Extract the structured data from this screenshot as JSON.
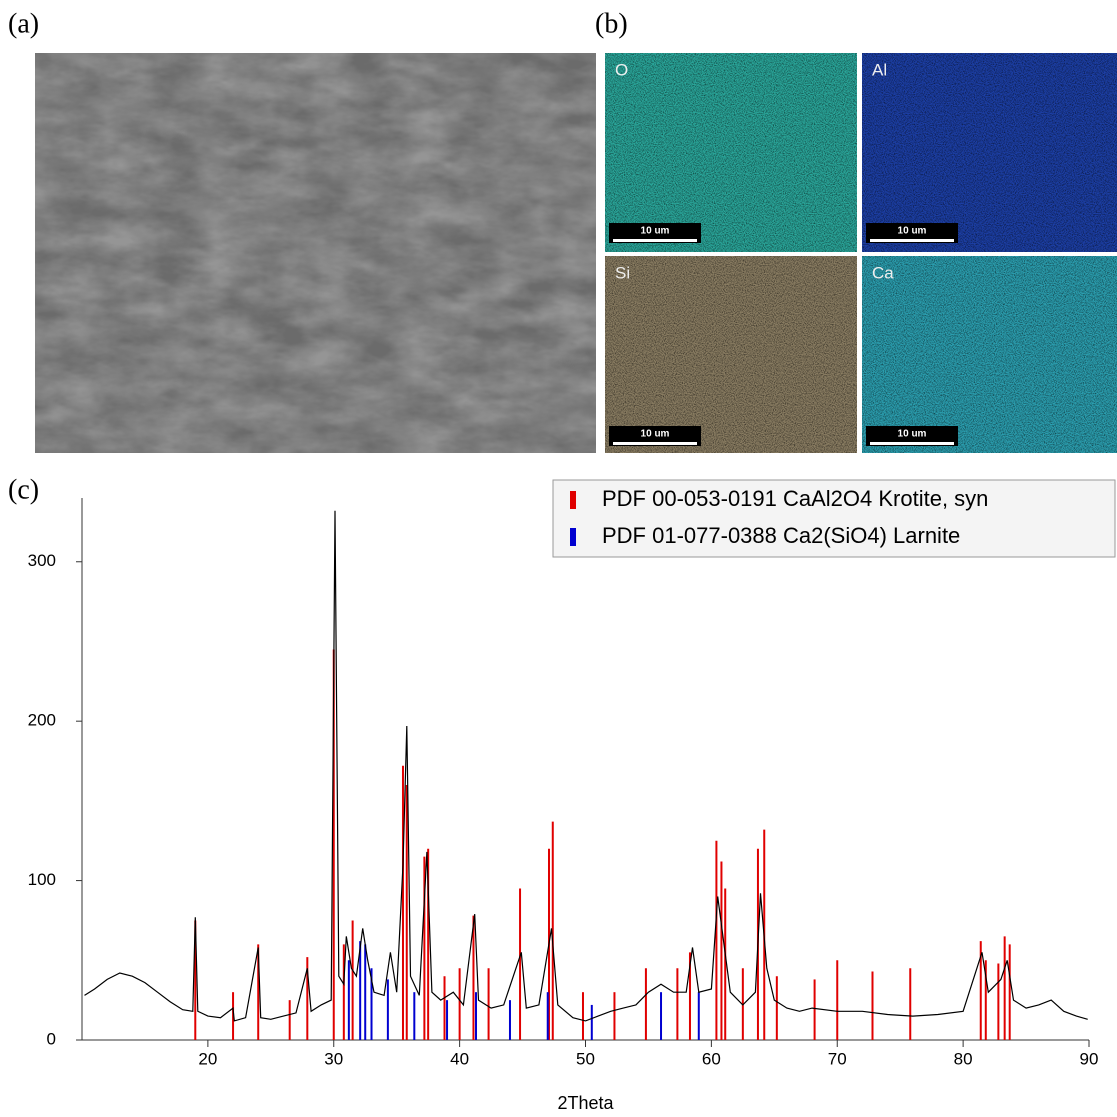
{
  "panels": {
    "a": {
      "label": "(a)"
    },
    "b": {
      "label": "(b)",
      "maps": [
        {
          "element": "O",
          "scale_bar": "10 um"
        },
        {
          "element": "Al",
          "scale_bar": "10 um"
        },
        {
          "element": "Si",
          "scale_bar": "10 um"
        },
        {
          "element": "Ca",
          "scale_bar": "10 um"
        }
      ]
    },
    "c": {
      "label": "(c)"
    }
  },
  "chart_data": {
    "type": "line",
    "x_label": "2Theta",
    "xlim": [
      10,
      90
    ],
    "xticks": [
      20,
      30,
      40,
      50,
      60,
      70,
      80,
      90
    ],
    "ylim": [
      0,
      340
    ],
    "yticks": [
      0,
      100,
      200,
      300
    ],
    "legend": "top-right",
    "series": [
      {
        "color": "#000000",
        "style": "line",
        "x": [
          10.2,
          11,
          12,
          13,
          14,
          15,
          16,
          17,
          18,
          18.8,
          19.0,
          19.2,
          20,
          21,
          22,
          22.1,
          23,
          24.0,
          24.2,
          25,
          26,
          27,
          27.9,
          28.2,
          29,
          29.8,
          30.1,
          30.4,
          30.8,
          31.0,
          31.4,
          31.8,
          32.3,
          32.7,
          33.2,
          34.0,
          34.5,
          35.0,
          35.5,
          35.8,
          36.1,
          36.8,
          37.4,
          37.8,
          38.5,
          39.5,
          40.3,
          41.2,
          41.5,
          42.5,
          43.5,
          44.9,
          45.3,
          46.3,
          47.3,
          47.8,
          49,
          50,
          51,
          52,
          53,
          54,
          55,
          56,
          57,
          58,
          58.5,
          59,
          60,
          60.5,
          61,
          61.5,
          62.5,
          63.5,
          63.9,
          64.4,
          65,
          66,
          67,
          68,
          70,
          72,
          74,
          76,
          78,
          80,
          81.5,
          82,
          83,
          83.5,
          84,
          85,
          86,
          87,
          88,
          89,
          89.9
        ],
        "values": [
          28,
          32,
          38,
          42,
          40,
          36,
          30,
          24,
          19,
          18,
          77,
          18,
          15,
          14,
          20,
          12,
          14,
          58,
          14,
          13,
          15,
          17,
          45,
          18,
          22,
          25,
          332,
          40,
          35,
          65,
          45,
          40,
          70,
          50,
          30,
          28,
          55,
          30,
          110,
          197,
          40,
          28,
          118,
          30,
          25,
          30,
          22,
          79,
          25,
          20,
          22,
          55,
          20,
          22,
          70,
          22,
          14,
          12,
          15,
          18,
          20,
          22,
          30,
          35,
          30,
          30,
          58,
          30,
          32,
          90,
          60,
          30,
          22,
          30,
          92,
          45,
          25,
          20,
          18,
          20,
          18,
          18,
          16,
          15,
          16,
          18,
          55,
          30,
          38,
          50,
          25,
          20,
          22,
          25,
          18,
          15,
          13
        ]
      },
      {
        "name": "PDF 00-053-0191 CaAl2O4 Krotite, syn",
        "color": "#e00000",
        "style": "sticks",
        "x": [
          19.0,
          22.0,
          24.0,
          26.5,
          27.9,
          30.0,
          30.8,
          31.5,
          35.5,
          35.8,
          37.2,
          37.5,
          38.8,
          40.0,
          41.1,
          42.3,
          44.8,
          47.1,
          47.4,
          49.8,
          52.3,
          54.8,
          57.3,
          58.3,
          60.4,
          60.8,
          61.1,
          62.5,
          63.7,
          64.2,
          65.2,
          68.2,
          70.0,
          72.8,
          75.8,
          81.4,
          81.8,
          82.8,
          83.3,
          83.7
        ],
        "values": [
          75,
          30,
          60,
          25,
          52,
          245,
          60,
          75,
          172,
          160,
          115,
          120,
          40,
          45,
          78,
          45,
          95,
          120,
          137,
          30,
          30,
          45,
          45,
          55,
          125,
          112,
          95,
          45,
          120,
          132,
          40,
          38,
          50,
          43,
          45,
          62,
          50,
          48,
          65,
          60
        ]
      },
      {
        "name": "PDF 01-077-0388 Ca2(SiO4) Larnite",
        "color": "#0000d0",
        "style": "sticks",
        "x": [
          31.2,
          32.1,
          32.5,
          33.0,
          34.3,
          36.4,
          39.0,
          41.3,
          44.0,
          47.0,
          50.5,
          56.0,
          59.0
        ],
        "values": [
          50,
          62,
          60,
          45,
          38,
          30,
          25,
          30,
          25,
          30,
          22,
          30,
          30
        ]
      }
    ]
  }
}
